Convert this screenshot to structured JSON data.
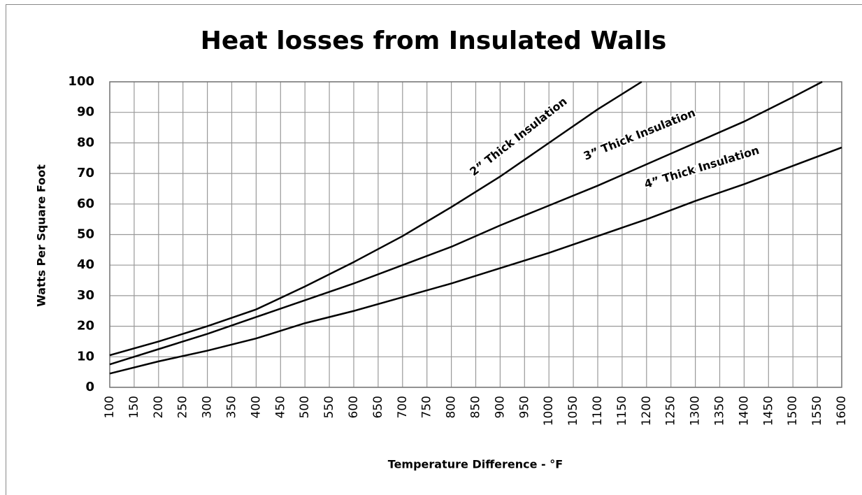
{
  "chart_data": {
    "type": "line",
    "title": "Heat losses from Insulated Walls",
    "xlabel": "Temperature Difference - °F",
    "ylabel": "Watts Per Square Foot",
    "series": [
      {
        "name": "2” Thick Insulation",
        "color": "#000000",
        "x": [
          100,
          200,
          300,
          400,
          500,
          600,
          700,
          800,
          900,
          1000,
          1100,
          1190
        ],
        "values": [
          10.5,
          15,
          20,
          25.5,
          33,
          41,
          49.5,
          59,
          69,
          80,
          91,
          100
        ]
      },
      {
        "name": "3” Thick Insulation",
        "color": "#000000",
        "x": [
          100,
          200,
          300,
          400,
          500,
          600,
          700,
          800,
          900,
          1000,
          1100,
          1200,
          1300,
          1400,
          1500,
          1560
        ],
        "values": [
          7.5,
          12.5,
          17.5,
          23,
          28.5,
          34,
          40,
          46,
          53,
          59.5,
          66,
          73,
          80,
          87,
          95,
          100
        ]
      },
      {
        "name": "4” Thick Insulation",
        "color": "#000000",
        "x": [
          100,
          200,
          300,
          400,
          500,
          600,
          700,
          800,
          900,
          1000,
          1100,
          1200,
          1300,
          1400,
          1500,
          1600
        ],
        "values": [
          4.5,
          8.5,
          12,
          16,
          21,
          25,
          29.5,
          34,
          39,
          44,
          49.5,
          55,
          61,
          66.5,
          72.5,
          78.5
        ]
      }
    ],
    "xlim": [
      100,
      1600
    ],
    "xticks": [
      100,
      150,
      200,
      250,
      300,
      350,
      400,
      450,
      500,
      550,
      600,
      650,
      700,
      750,
      800,
      850,
      900,
      950,
      1000,
      1050,
      1100,
      1150,
      1200,
      1250,
      1300,
      1350,
      1400,
      1450,
      1500,
      1550,
      1600
    ],
    "ylim": [
      0,
      100
    ],
    "yticks": [
      0,
      10,
      20,
      30,
      40,
      50,
      60,
      70,
      80,
      90,
      100
    ],
    "grid": true
  }
}
